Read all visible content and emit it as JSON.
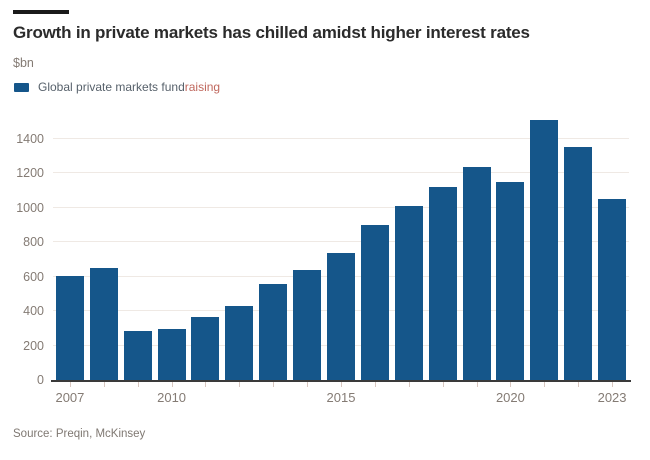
{
  "header": {
    "title": "Growth in private markets has chilled amidst higher interest rates",
    "subtitle": "$bn"
  },
  "legend": {
    "label_main": "Global private markets fund",
    "label_highlight": "raising"
  },
  "source": "Source: Preqin, McKinsey",
  "colors": {
    "bar": "#15568a",
    "title": "#2b2b2b",
    "axis_text": "#847b74",
    "legend_text": "#57616b",
    "legend_highlight": "#c0685e",
    "gridline": "#efe9e4",
    "baseline": "#3a3a3a",
    "tick": "#d8c7c0",
    "source_text": "#7f7872",
    "top_dash": "#1a1a1a"
  },
  "chart_data": {
    "type": "bar",
    "title": "Growth in private markets has chilled amidst higher interest rates",
    "ylabel": "$bn",
    "series_name": "Global private markets fundraising",
    "categories": [
      2007,
      2008,
      2009,
      2010,
      2011,
      2012,
      2013,
      2014,
      2015,
      2016,
      2017,
      2018,
      2019,
      2020,
      2021,
      2022,
      2023
    ],
    "values": [
      605,
      650,
      285,
      295,
      365,
      430,
      560,
      640,
      740,
      900,
      1010,
      1120,
      1235,
      1150,
      1510,
      1350,
      1050
    ],
    "ylim": [
      0,
      1550
    ],
    "yticks": [
      0,
      200,
      400,
      600,
      800,
      1000,
      1200,
      1400
    ],
    "xtick_labels": [
      {
        "label": "2007",
        "index": 0
      },
      {
        "label": "2010",
        "index": 3
      },
      {
        "label": "2015",
        "index": 8
      },
      {
        "label": "2020",
        "index": 13
      },
      {
        "label": "2023",
        "index": 16
      }
    ],
    "grid": "horizontal",
    "legend_position": "top-left"
  }
}
